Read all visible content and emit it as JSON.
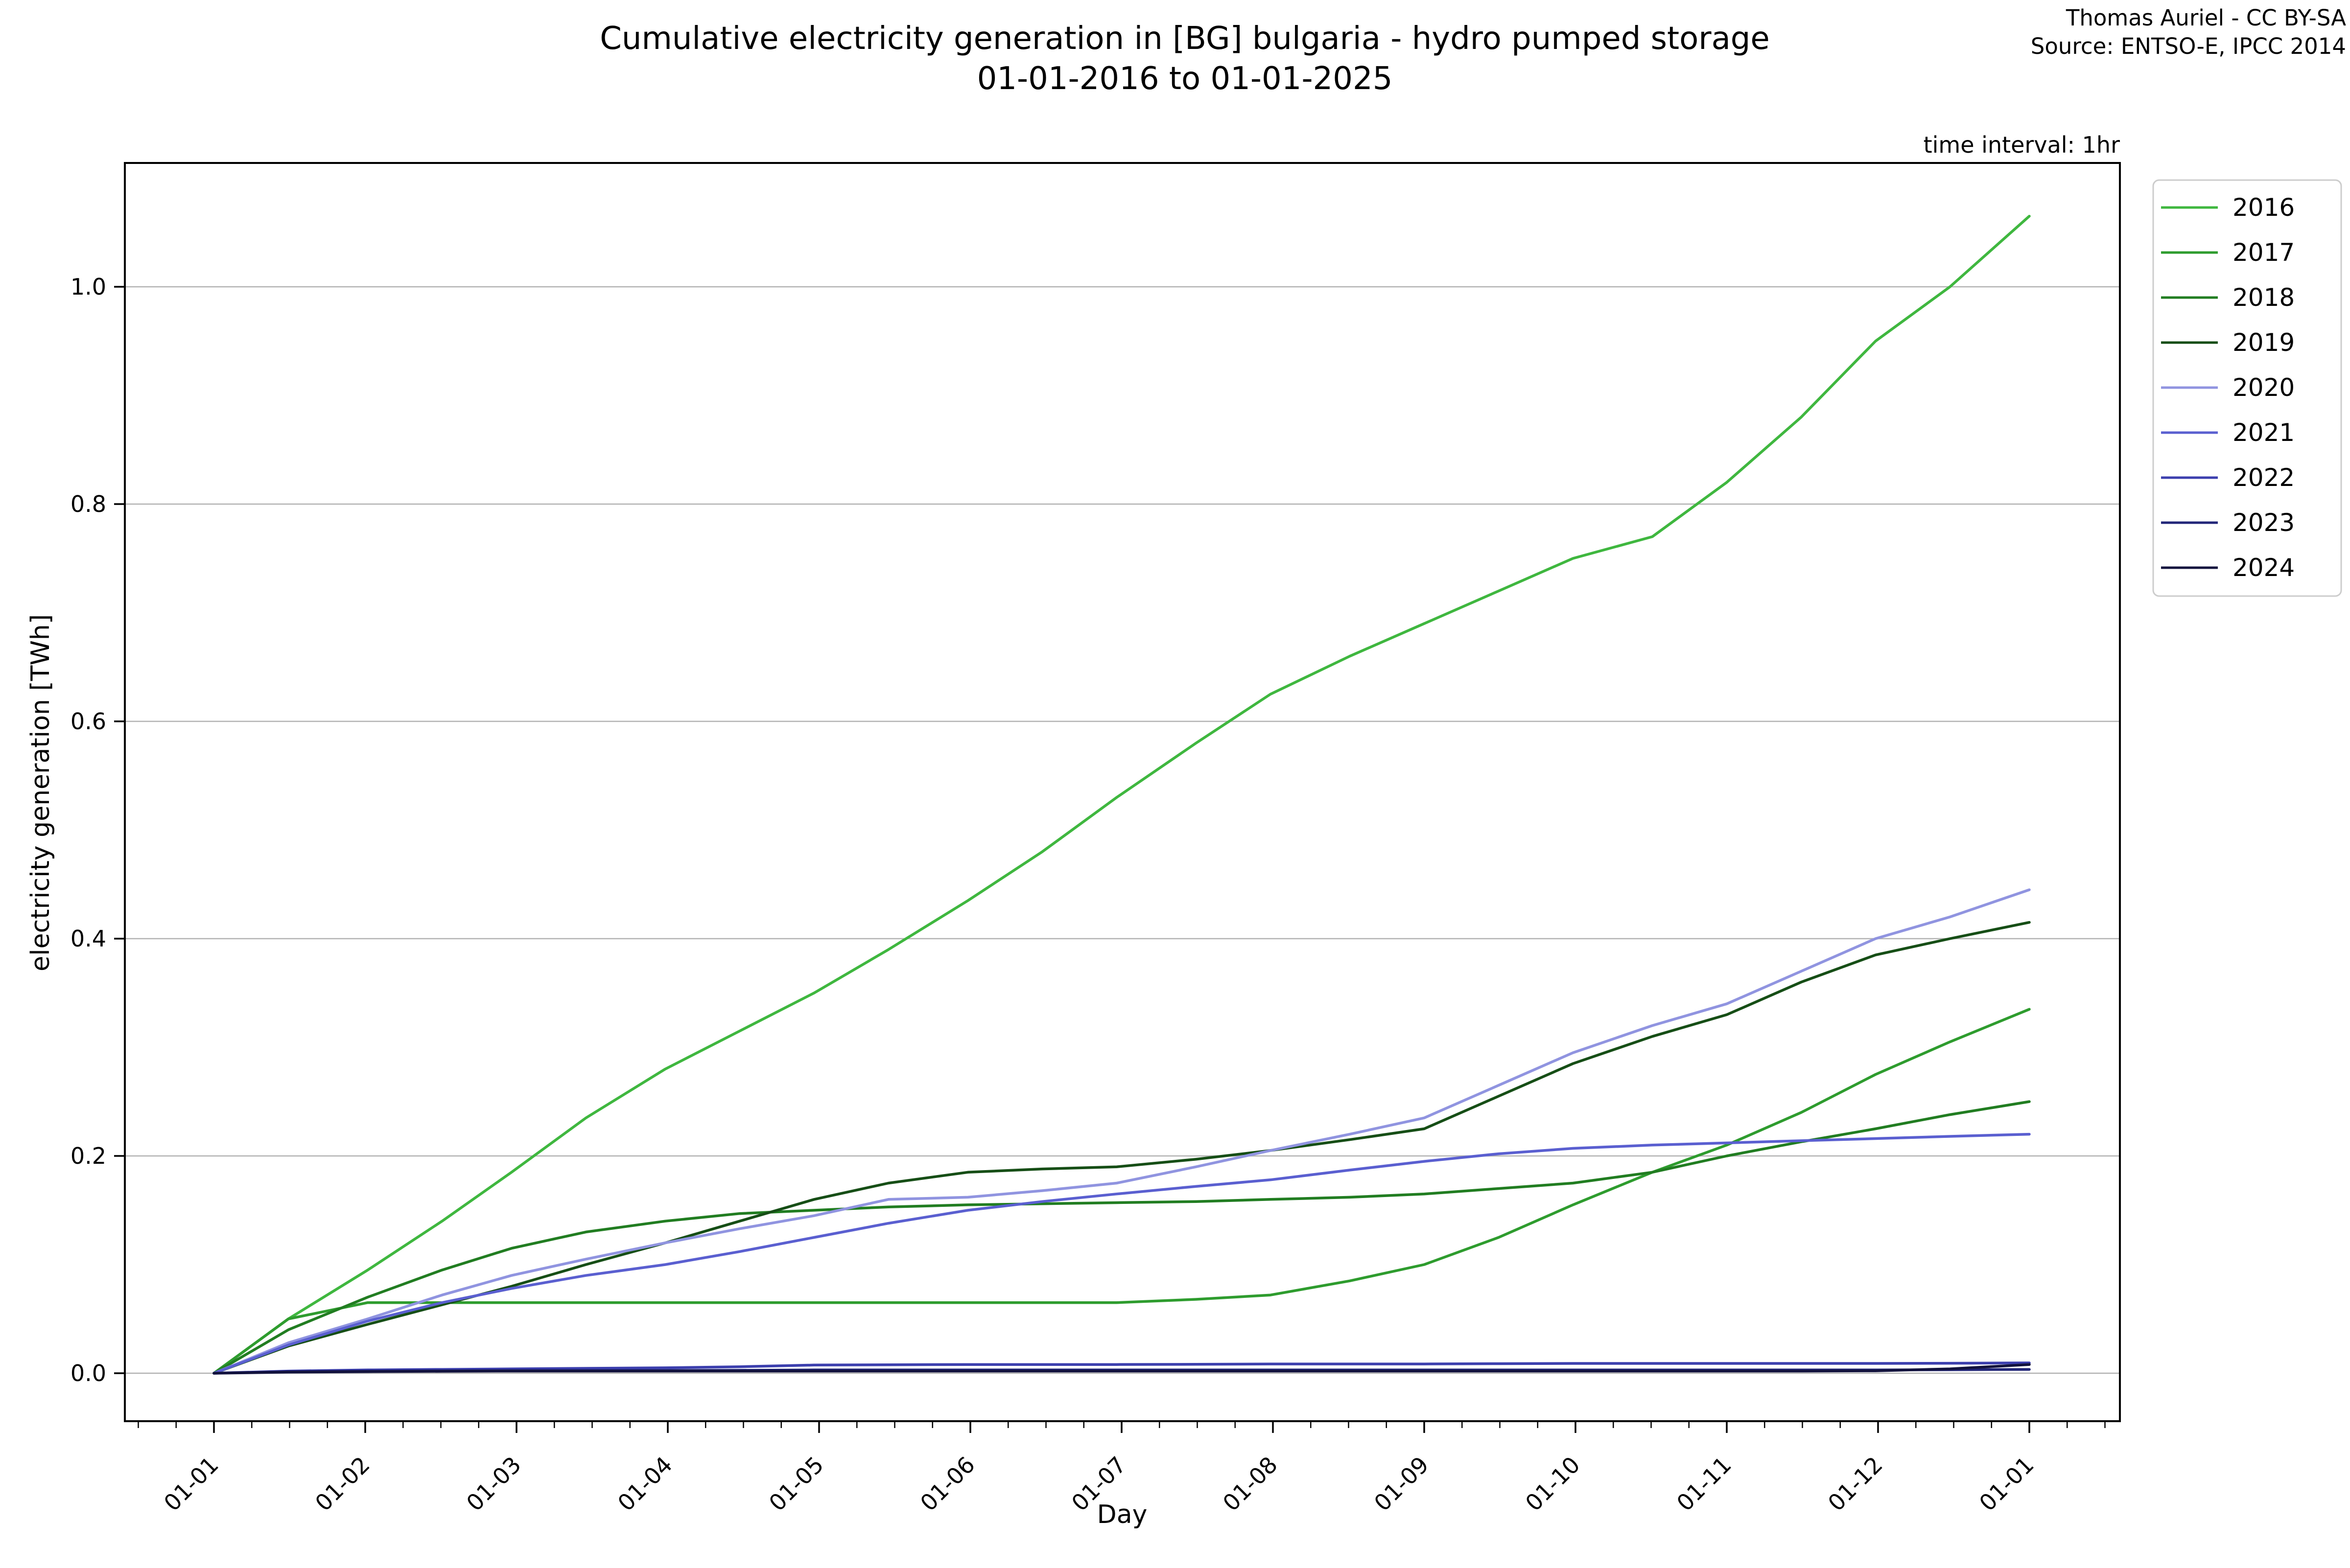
{
  "title": {
    "line1": "Cumulative electricity generation in [BG] bulgaria - hydro pumped storage",
    "line2": "01-01-2016 to 01-01-2025"
  },
  "attribution": {
    "line1": "Thomas Auriel - CC BY-SA",
    "line2": "Source: ENTSO-E, IPCC 2014"
  },
  "note": "time interval: 1hr",
  "axes": {
    "xlabel": "Day",
    "ylabel": "electricity generation [TWh]",
    "x_tick_labels": [
      "01-01",
      "01-02",
      "01-03",
      "01-04",
      "01-05",
      "01-06",
      "01-07",
      "01-08",
      "01-09",
      "01-10",
      "01-11",
      "01-12",
      "01-01"
    ],
    "y_tick_labels": [
      "0.0",
      "0.2",
      "0.4",
      "0.6",
      "0.8",
      "1.0"
    ],
    "y_tick_values": [
      0.0,
      0.2,
      0.4,
      0.6,
      0.8,
      1.0
    ]
  },
  "colors": {
    "grid": "#b3b3b3",
    "spine": "#000000",
    "legend_border": "#cccccc"
  },
  "chart_data": {
    "type": "line",
    "title": "Cumulative electricity generation in [BG] bulgaria - hydro pumped storage 01-01-2016 to 01-01-2025",
    "xlabel": "Day",
    "ylabel": "electricity generation [TWh]",
    "x_unit": "day of year",
    "grid": true,
    "legend_position": "upper right outside",
    "ylim": [
      -0.045,
      1.115
    ],
    "x_tick_labels": [
      "01-01",
      "01-02",
      "01-03",
      "01-04",
      "01-05",
      "01-06",
      "01-07",
      "01-08",
      "01-09",
      "01-10",
      "01-11",
      "01-12",
      "01-01"
    ],
    "x": [
      0,
      15,
      31,
      46,
      60,
      75,
      91,
      106,
      121,
      136,
      152,
      167,
      182,
      198,
      213,
      229,
      244,
      259,
      274,
      290,
      305,
      320,
      335,
      350,
      366
    ],
    "series": [
      {
        "name": "2016",
        "color": "#3fb73f",
        "values": [
          0,
          0.05,
          0.095,
          0.14,
          0.185,
          0.235,
          0.28,
          0.315,
          0.35,
          0.39,
          0.435,
          0.48,
          0.53,
          0.58,
          0.625,
          0.66,
          0.69,
          0.72,
          0.75,
          0.77,
          0.82,
          0.88,
          0.95,
          1.0,
          1.065
        ]
      },
      {
        "name": "2017",
        "color": "#2e9c2e",
        "values": [
          0,
          0.05,
          0.065,
          0.065,
          0.065,
          0.065,
          0.065,
          0.065,
          0.065,
          0.065,
          0.065,
          0.065,
          0.065,
          0.068,
          0.072,
          0.085,
          0.1,
          0.125,
          0.155,
          0.185,
          0.21,
          0.24,
          0.275,
          0.305,
          0.335
        ]
      },
      {
        "name": "2018",
        "color": "#217d21",
        "values": [
          0,
          0.04,
          0.07,
          0.095,
          0.115,
          0.13,
          0.14,
          0.147,
          0.15,
          0.153,
          0.155,
          0.156,
          0.157,
          0.158,
          0.16,
          0.162,
          0.165,
          0.17,
          0.175,
          0.185,
          0.2,
          0.213,
          0.225,
          0.238,
          0.25
        ]
      },
      {
        "name": "2019",
        "color": "#164e16",
        "values": [
          0,
          0.025,
          0.045,
          0.063,
          0.08,
          0.1,
          0.12,
          0.14,
          0.16,
          0.175,
          0.185,
          0.188,
          0.19,
          0.197,
          0.205,
          0.215,
          0.225,
          0.255,
          0.285,
          0.31,
          0.33,
          0.36,
          0.385,
          0.4,
          0.415
        ]
      },
      {
        "name": "2020",
        "color": "#9094e0",
        "values": [
          0,
          0.028,
          0.05,
          0.072,
          0.09,
          0.105,
          0.12,
          0.133,
          0.145,
          0.16,
          0.162,
          0.168,
          0.175,
          0.19,
          0.205,
          0.22,
          0.235,
          0.265,
          0.295,
          0.32,
          0.34,
          0.37,
          0.4,
          0.42,
          0.445
        ]
      },
      {
        "name": "2021",
        "color": "#5a5fd0",
        "values": [
          0,
          0.026,
          0.048,
          0.065,
          0.078,
          0.09,
          0.1,
          0.112,
          0.125,
          0.138,
          0.15,
          0.158,
          0.165,
          0.172,
          0.178,
          0.187,
          0.195,
          0.202,
          0.207,
          0.21,
          0.212,
          0.214,
          0.216,
          0.218,
          0.22
        ]
      },
      {
        "name": "2022",
        "color": "#3c3fae",
        "values": [
          0,
          0.002,
          0.003,
          0.0035,
          0.004,
          0.0045,
          0.005,
          0.006,
          0.0075,
          0.0078,
          0.008,
          0.008,
          0.008,
          0.0082,
          0.0085,
          0.0085,
          0.0085,
          0.0088,
          0.009,
          0.009,
          0.009,
          0.009,
          0.009,
          0.0092,
          0.0095
        ]
      },
      {
        "name": "2023",
        "color": "#222678",
        "values": [
          0,
          0.0015,
          0.002,
          0.0022,
          0.0025,
          0.0025,
          0.0025,
          0.0027,
          0.003,
          0.003,
          0.003,
          0.003,
          0.003,
          0.003,
          0.003,
          0.003,
          0.003,
          0.003,
          0.003,
          0.003,
          0.003,
          0.003,
          0.003,
          0.0032,
          0.0035
        ]
      },
      {
        "name": "2024",
        "color": "#12123d",
        "values": [
          0,
          0.001,
          0.0015,
          0.0018,
          0.002,
          0.002,
          0.002,
          0.002,
          0.002,
          0.002,
          0.002,
          0.002,
          0.002,
          0.002,
          0.002,
          0.002,
          0.002,
          0.002,
          0.002,
          0.002,
          0.002,
          0.002,
          0.0022,
          0.004,
          0.008
        ]
      }
    ]
  }
}
